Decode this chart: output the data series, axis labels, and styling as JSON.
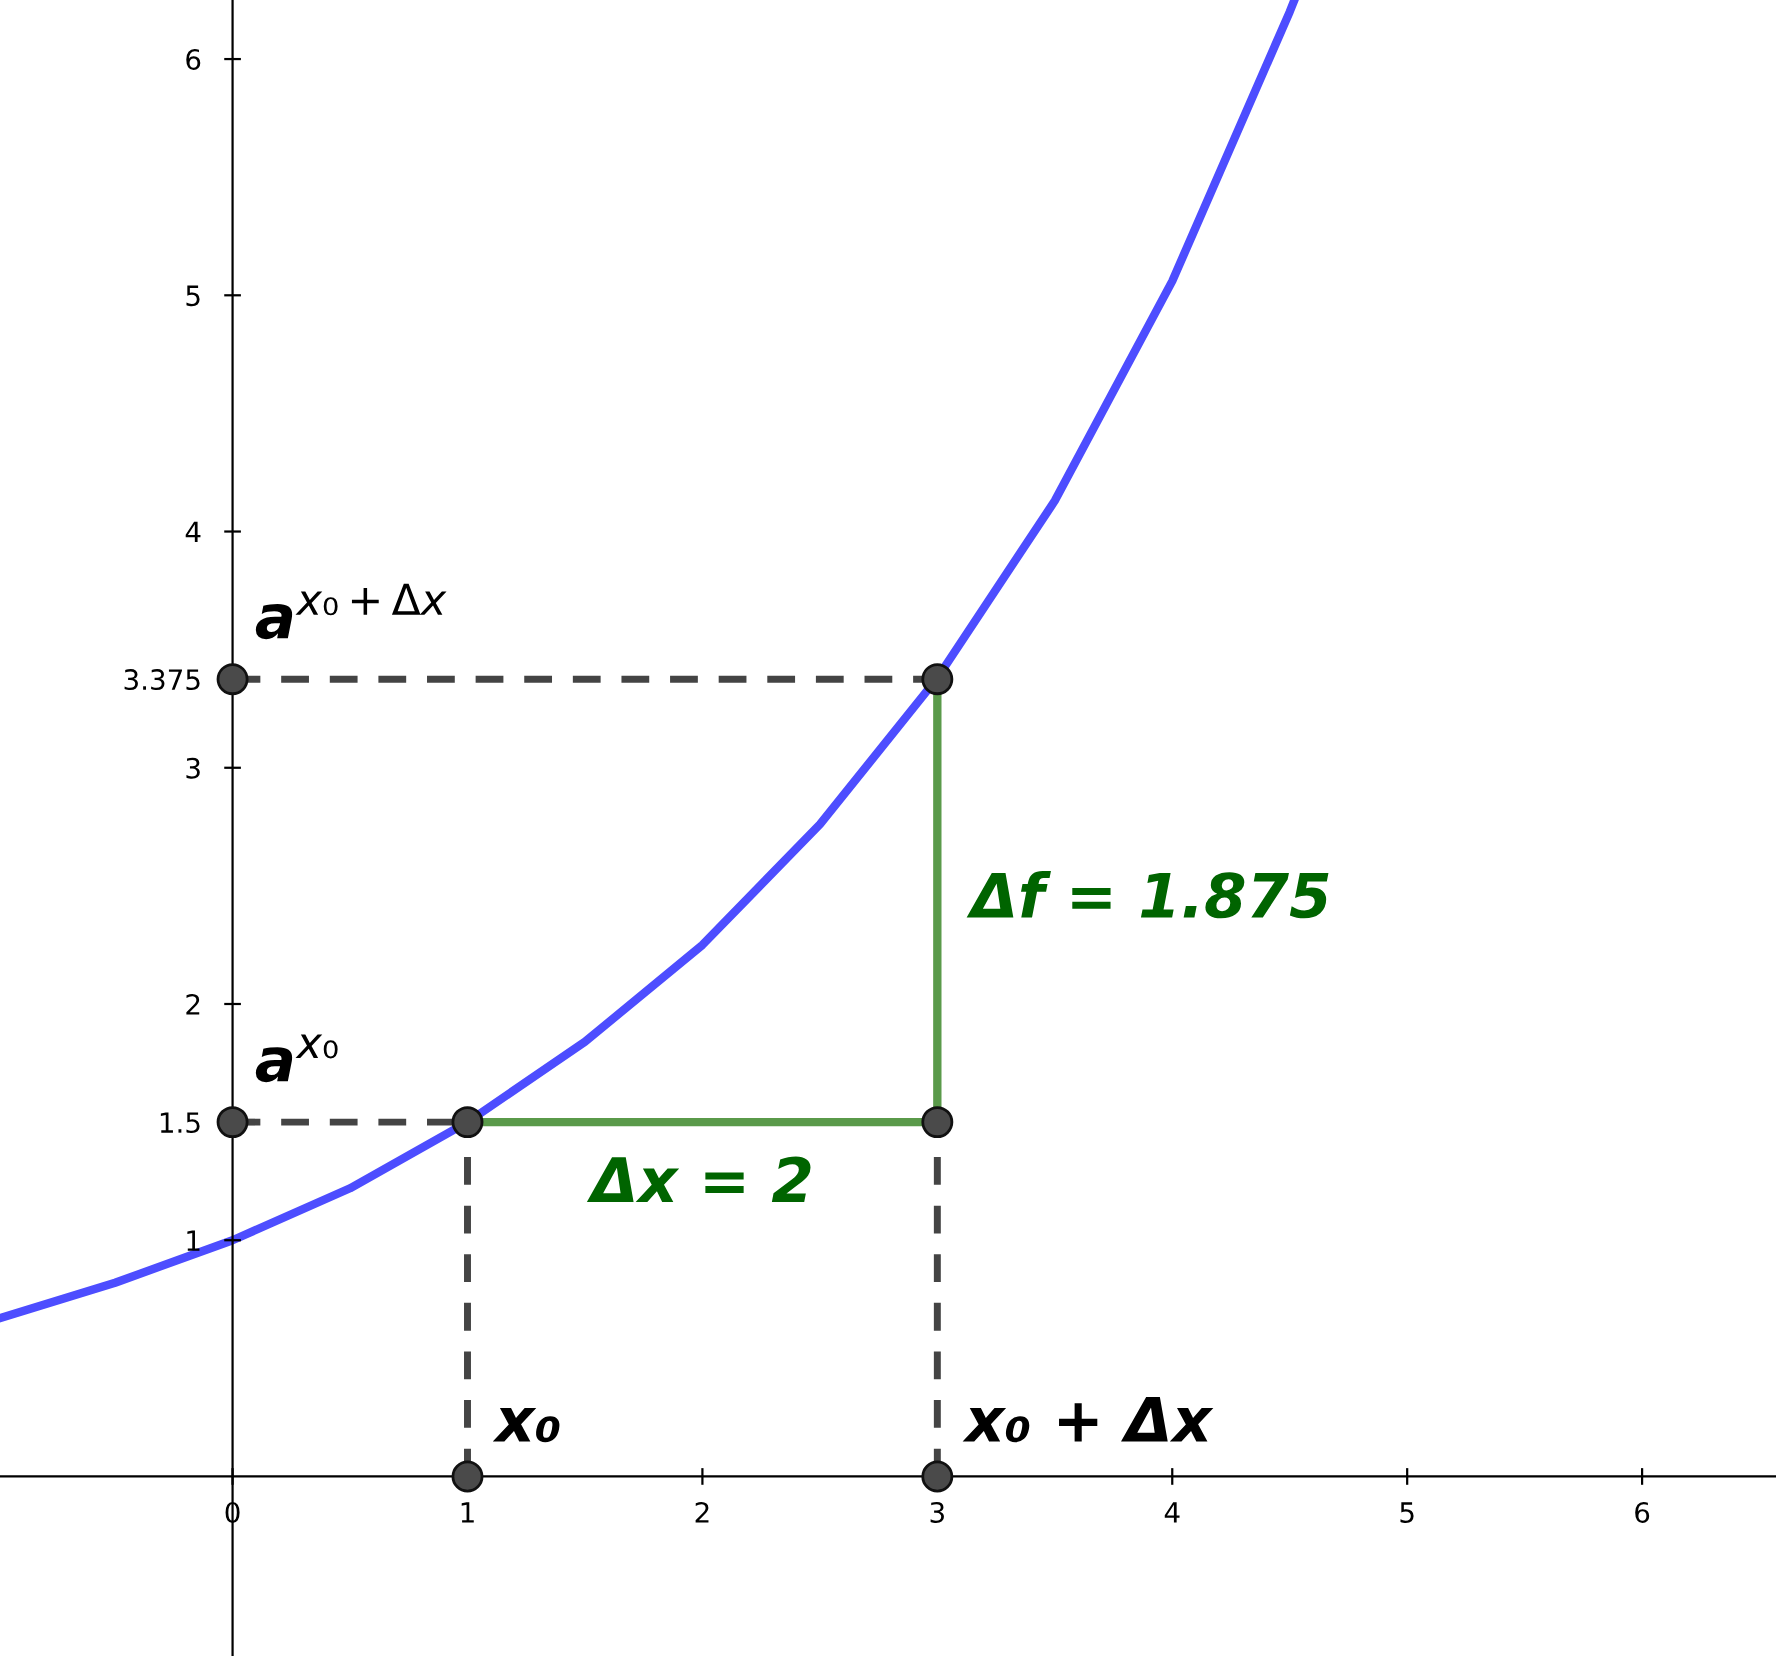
{
  "chart_data": {
    "type": "line",
    "xlim": [
      -0.99,
      6.57
    ],
    "ylim": [
      -0.76,
      6.25
    ],
    "xticks": [
      0,
      1,
      2,
      3,
      4,
      5,
      6
    ],
    "yticks": [
      1,
      {
        "value": 1.5,
        "label": "1.5"
      },
      2,
      3,
      {
        "value": 3.375,
        "label": "3.375"
      },
      4,
      5,
      6
    ],
    "grid": false,
    "legend": false,
    "series": [
      {
        "color": "#4d4dff",
        "line_style": "solid",
        "x": [
          -0.99,
          -0.5,
          0,
          0.5,
          1,
          1.5,
          2,
          2.5,
          3,
          3.5,
          4,
          4.5,
          4.52
        ],
        "values": [
          0.67,
          0.82,
          1,
          1.22,
          1.5,
          1.84,
          2.25,
          2.76,
          3.38,
          4.13,
          5.06,
          6.2,
          6.25
        ]
      },
      {
        "type": "line",
        "color": "#444444",
        "line_style": "dashed",
        "x": [
          0,
          3
        ],
        "values": [
          3.375,
          3.375
        ]
      },
      {
        "type": "line",
        "color": "#444444",
        "line_style": "dashed",
        "x": [
          0,
          1
        ],
        "values": [
          1.5,
          1.5
        ]
      },
      {
        "type": "line",
        "color": "#444444",
        "line_style": "dashed",
        "x": [
          1,
          1
        ],
        "values": [
          0,
          1.5
        ]
      },
      {
        "type": "line",
        "color": "#444444",
        "line_style": "dashed",
        "x": [
          3,
          3
        ],
        "values": [
          0,
          1.5
        ]
      },
      {
        "type": "line",
        "color": "#5a9a4a",
        "line_style": "solid",
        "x": [
          1,
          3
        ],
        "values": [
          1.5,
          1.5
        ]
      },
      {
        "type": "line",
        "color": "#5a9a4a",
        "line_style": "solid",
        "x": [
          3,
          3
        ],
        "values": [
          1.5,
          3.375
        ]
      },
      {
        "type": "scatter",
        "color": "#4a4a4a",
        "marker": "circle",
        "x": [
          0,
          3,
          0,
          1,
          3,
          1,
          3
        ],
        "values": [
          3.375,
          3.375,
          1.5,
          1.5,
          1.5,
          0,
          0
        ]
      }
    ],
    "annotations": [
      {
        "text": "a$^{x₀+Δx}$",
        "x": 0,
        "y": 3.375
      },
      {
        "text": "a$^{x₀}$",
        "x": 0,
        "y": 1.5
      },
      {
        "text": "x₀",
        "x": 1,
        "y": 0
      },
      {
        "text": "x₀ + Δx",
        "x": 3,
        "y": 0
      },
      {
        "text": "Δx = 2",
        "x": 2,
        "y": 1.5
      },
      {
        "text": "Δf = 1.875",
        "x": 3,
        "y": 2.4375
      }
    ]
  }
}
